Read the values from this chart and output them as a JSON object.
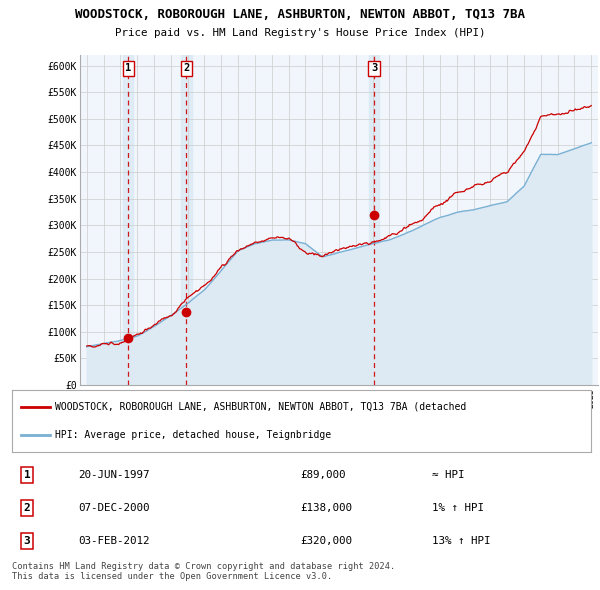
{
  "title": "WOODSTOCK, ROBOROUGH LANE, ASHBURTON, NEWTON ABBOT, TQ13 7BA",
  "subtitle": "Price paid vs. HM Land Registry's House Price Index (HPI)",
  "ylim": [
    0,
    620000
  ],
  "yticks": [
    0,
    50000,
    100000,
    150000,
    200000,
    250000,
    300000,
    350000,
    400000,
    450000,
    500000,
    550000,
    600000
  ],
  "ytick_labels": [
    "£0",
    "£50K",
    "£100K",
    "£150K",
    "£200K",
    "£250K",
    "£300K",
    "£350K",
    "£400K",
    "£450K",
    "£500K",
    "£550K",
    "£600K"
  ],
  "hpi_line_color": "#7ab0d4",
  "hpi_fill_color": "#ddeaf4",
  "price_color": "#cc0000",
  "vline_shade_color": "#d8e8f4",
  "sales": [
    {
      "date_num": 1997.47,
      "price": 89000,
      "label": "1"
    },
    {
      "date_num": 2000.93,
      "price": 138000,
      "label": "2"
    },
    {
      "date_num": 2012.09,
      "price": 320000,
      "label": "3"
    }
  ],
  "vline_dates": [
    1997.47,
    2000.93,
    2012.09
  ],
  "legend_price_label": "WOODSTOCK, ROBOROUGH LANE, ASHBURTON, NEWTON ABBOT, TQ13 7BA (detached",
  "legend_hpi_label": "HPI: Average price, detached house, Teignbridge",
  "table_rows": [
    {
      "num": "1",
      "date": "20-JUN-1997",
      "price": "£89,000",
      "hpi": "≈ HPI"
    },
    {
      "num": "2",
      "date": "07-DEC-2000",
      "price": "£138,000",
      "hpi": "1% ↑ HPI"
    },
    {
      "num": "3",
      "date": "03-FEB-2012",
      "price": "£320,000",
      "hpi": "13% ↑ HPI"
    }
  ],
  "footer": "Contains HM Land Registry data © Crown copyright and database right 2024.\nThis data is licensed under the Open Government Licence v3.0.",
  "background_color": "#ffffff",
  "grid_color": "#cccccc",
  "xlim_left": 1994.6,
  "xlim_right": 2025.4,
  "xtick_start": 1995,
  "xtick_end": 2025
}
